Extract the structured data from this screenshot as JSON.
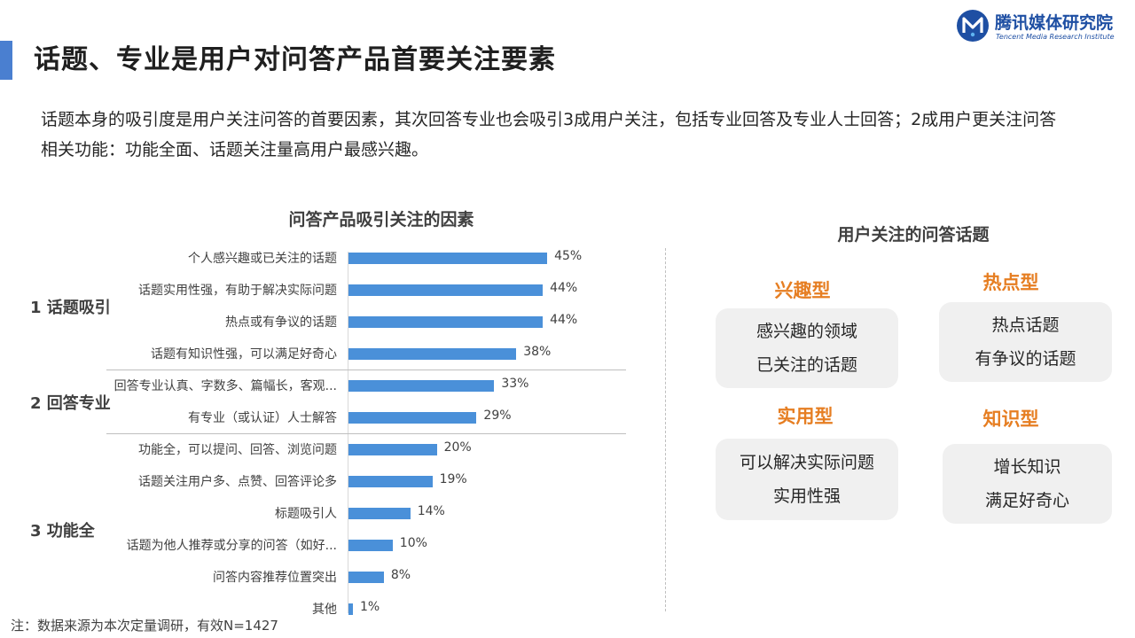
{
  "header": {
    "title": "话题、专业是用户对问答产品首要关注要素",
    "logo_cn": "腾讯媒体研究院",
    "logo_en": "Tencent Media Research Institute"
  },
  "intro": "话题本身的吸引度是用户关注问答的首要因素，其次回答专业也会吸引3成用户关注，包括专业回答及专业人士回答；2成用户更关注问答相关功能：功能全面、话题关注量高用户最感兴趣。",
  "chart_data": {
    "type": "bar",
    "orientation": "horizontal",
    "title": "问答产品吸引关注的因素",
    "categories": [
      "个人感兴趣或已关注的话题",
      "话题实用性强，有助于解决实际问题",
      "热点或有争议的话题",
      "话题有知识性强，可以满足好奇心",
      "回答专业认真、字数多、篇幅长，客观...",
      "有专业（或认证）人士解答",
      "功能全，可以提问、回答、浏览问题",
      "话题关注用户多、点赞、回答评论多",
      "标题吸引人",
      "话题为他人推荐或分享的问答（如好...",
      "问答内容推荐位置突出",
      "其他"
    ],
    "values": [
      45,
      44,
      44,
      38,
      33,
      29,
      20,
      19,
      14,
      10,
      8,
      1
    ],
    "value_labels": [
      "45%",
      "44%",
      "44%",
      "38%",
      "33%",
      "29%",
      "20%",
      "19%",
      "14%",
      "10%",
      "8%",
      "1%"
    ],
    "groups": [
      {
        "label": "1 话题吸引",
        "start": 0,
        "end": 3
      },
      {
        "label": "2 回答专业",
        "start": 4,
        "end": 5
      },
      {
        "label": "3 功能全",
        "start": 6,
        "end": 11
      }
    ],
    "xlim": [
      0,
      100
    ],
    "color": "#4a90d9"
  },
  "topics": {
    "title": "用户关注的问答话题",
    "cards": [
      {
        "type": "兴趣型",
        "lines": [
          "感兴趣的领域",
          "已关注的话题"
        ]
      },
      {
        "type": "热点型",
        "lines": [
          "热点话题",
          "有争议的话题"
        ]
      },
      {
        "type": "实用型",
        "lines": [
          "可以解决实际问题",
          "实用性强"
        ]
      },
      {
        "type": "知识型",
        "lines": [
          "增长知识",
          "满足好奇心"
        ]
      }
    ],
    "accent_color": "#e67e22"
  },
  "footnote": "注：数据来源为本次定量调研，有效N=1427"
}
